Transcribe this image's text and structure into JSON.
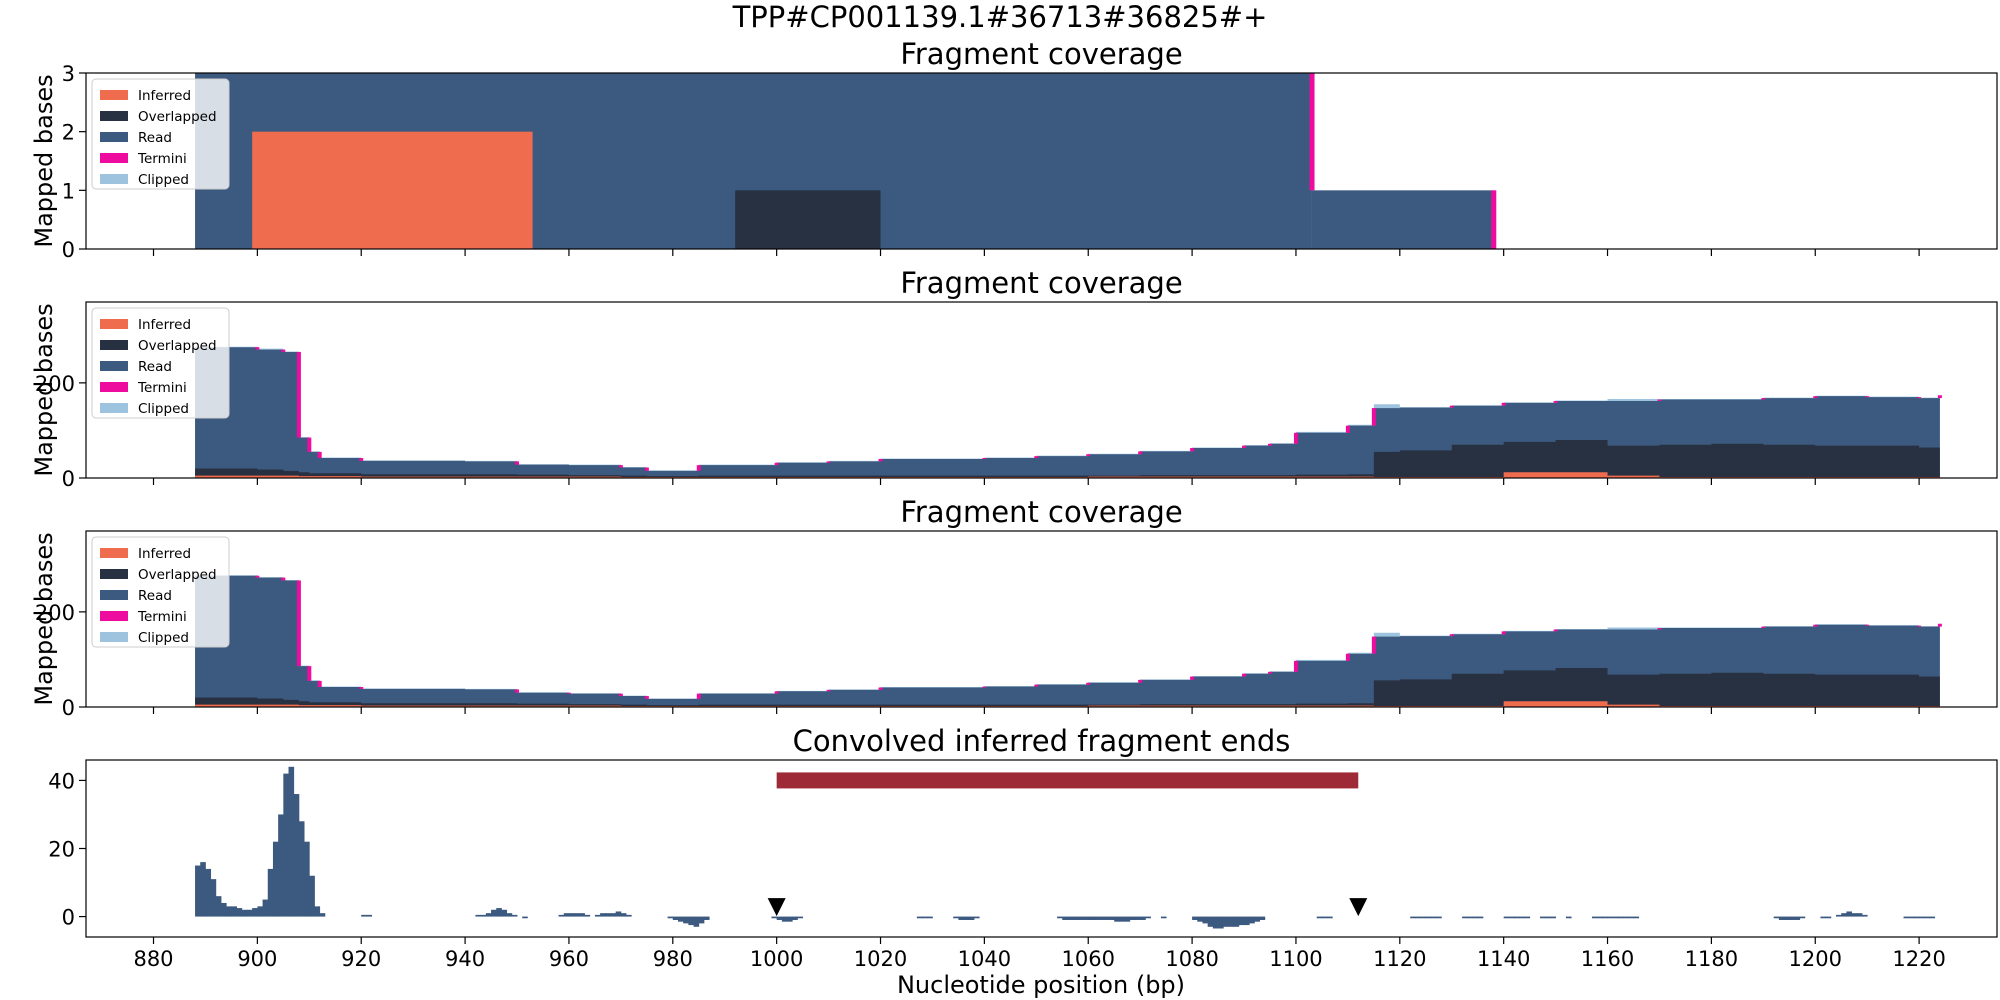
{
  "figure": {
    "suptitle": "TPP#CP001139.1#36713#36825#+"
  },
  "colors": {
    "Inferred": "#ef6c4f",
    "Overlapped": "#283142",
    "Read": "#3c5a80",
    "Termini": "#ee0c9e",
    "Clipped": "#9dc3de",
    "ends_bar": "#3c5a80",
    "region_bar": "#9e2a38",
    "marker": "#000000"
  },
  "x_axis": {
    "label": "Nucleotide position (bp)",
    "range": [
      867,
      1235
    ],
    "ticks": [
      880,
      900,
      920,
      940,
      960,
      980,
      1000,
      1020,
      1040,
      1060,
      1080,
      1100,
      1120,
      1140,
      1160,
      1180,
      1200,
      1220
    ]
  },
  "chart_data": [
    {
      "type": "area",
      "title": "Fragment coverage",
      "ylabel": "Mapped bases",
      "ylim": [
        0,
        3
      ],
      "yticks": [
        0,
        1,
        2,
        3
      ],
      "legend": [
        "Inferred",
        "Overlapped",
        "Read",
        "Termini",
        "Clipped"
      ],
      "legend_position": "top-left",
      "step_layers": [
        {
          "name": "Read",
          "segments": [
            [
              888,
              1103,
              3
            ],
            [
              1103,
              1138,
              1
            ]
          ]
        },
        {
          "name": "Inferred",
          "segments": [
            [
              899,
              953,
              2
            ]
          ]
        },
        {
          "name": "Overlapped",
          "segments": [
            [
              992,
              1020,
              1
            ]
          ]
        }
      ],
      "termini": [
        [
          1103,
          1,
          3
        ],
        [
          1138,
          0,
          1
        ]
      ]
    },
    {
      "type": "area",
      "title": "Fragment coverage",
      "ylabel": "Mapped bases",
      "ylim": [
        0,
        370
      ],
      "yticks": [
        0,
        200
      ],
      "legend": [
        "Inferred",
        "Overlapped",
        "Read",
        "Termini",
        "Clipped"
      ],
      "legend_position": "top-left",
      "x": [
        888,
        900,
        905,
        908,
        910,
        912,
        920,
        940,
        950,
        960,
        970,
        975,
        980,
        985,
        1000,
        1010,
        1020,
        1040,
        1050,
        1060,
        1070,
        1080,
        1090,
        1095,
        1100,
        1110,
        1115,
        1120,
        1130,
        1140,
        1150,
        1160,
        1170,
        1180,
        1190,
        1200,
        1210,
        1220,
        1224
      ],
      "series": [
        {
          "name": "Read",
          "values": [
            275,
            270,
            265,
            85,
            55,
            42,
            36,
            35,
            28,
            27,
            22,
            15,
            15,
            27,
            32,
            35,
            40,
            42,
            46,
            50,
            56,
            63,
            68,
            72,
            95,
            110,
            147,
            148,
            152,
            158,
            162,
            162,
            165,
            165,
            168,
            172,
            170,
            168,
            174
          ]
        },
        {
          "name": "Overlapped",
          "values": [
            20,
            18,
            15,
            12,
            10,
            10,
            8,
            8,
            7,
            6,
            5,
            4,
            4,
            5,
            5,
            5,
            5,
            5,
            5,
            5,
            6,
            6,
            6,
            6,
            7,
            8,
            55,
            58,
            70,
            76,
            80,
            68,
            70,
            72,
            70,
            68,
            68,
            64,
            55
          ]
        },
        {
          "name": "Inferred",
          "values": [
            5,
            5,
            5,
            4,
            4,
            4,
            3,
            3,
            3,
            3,
            2,
            2,
            2,
            2,
            2,
            2,
            2,
            2,
            2,
            3,
            3,
            3,
            3,
            3,
            3,
            3,
            2,
            2,
            2,
            12,
            12,
            5,
            2,
            2,
            2,
            2,
            2,
            2,
            2
          ]
        },
        {
          "name": "Clipped",
          "values": [
            276,
            272,
            266,
            86,
            56,
            43,
            37,
            36,
            29,
            28,
            23,
            16,
            16,
            28,
            33,
            36,
            41,
            43,
            47,
            51,
            57,
            64,
            69,
            73,
            97,
            112,
            155,
            149,
            153,
            159,
            163,
            166,
            166,
            166,
            169,
            173,
            171,
            169,
            175
          ]
        }
      ]
    },
    {
      "type": "area",
      "title": "Fragment coverage",
      "ylabel": "Mapped bases",
      "ylim": [
        0,
        370
      ],
      "yticks": [
        0,
        200
      ],
      "legend": [
        "Inferred",
        "Overlapped",
        "Read",
        "Termini",
        "Clipped"
      ],
      "legend_position": "top-left",
      "x": [
        888,
        900,
        905,
        908,
        910,
        912,
        920,
        940,
        950,
        960,
        970,
        975,
        980,
        985,
        1000,
        1010,
        1020,
        1040,
        1050,
        1060,
        1070,
        1080,
        1090,
        1095,
        1100,
        1110,
        1115,
        1120,
        1130,
        1140,
        1150,
        1160,
        1170,
        1180,
        1190,
        1200,
        1210,
        1220,
        1224
      ],
      "series": [
        {
          "name": "Read",
          "values": [
            276,
            272,
            266,
            86,
            55,
            42,
            38,
            37,
            30,
            28,
            23,
            17,
            17,
            28,
            33,
            36,
            41,
            43,
            47,
            51,
            57,
            64,
            70,
            74,
            97,
            112,
            148,
            149,
            153,
            159,
            163,
            163,
            166,
            166,
            169,
            173,
            171,
            169,
            175
          ]
        },
        {
          "name": "Overlapped",
          "values": [
            20,
            18,
            15,
            12,
            10,
            10,
            8,
            8,
            7,
            6,
            5,
            4,
            4,
            5,
            5,
            5,
            5,
            5,
            5,
            5,
            6,
            6,
            6,
            6,
            7,
            8,
            56,
            58,
            70,
            77,
            82,
            68,
            70,
            72,
            70,
            68,
            68,
            64,
            56
          ]
        },
        {
          "name": "Inferred",
          "values": [
            5,
            5,
            5,
            4,
            4,
            4,
            3,
            3,
            3,
            3,
            2,
            2,
            2,
            2,
            2,
            2,
            2,
            2,
            2,
            3,
            3,
            3,
            3,
            3,
            3,
            3,
            2,
            2,
            2,
            12,
            12,
            5,
            2,
            2,
            2,
            2,
            2,
            2,
            2
          ]
        },
        {
          "name": "Clipped",
          "values": [
            277,
            273,
            267,
            87,
            56,
            43,
            39,
            38,
            31,
            29,
            24,
            18,
            18,
            29,
            34,
            37,
            42,
            44,
            48,
            52,
            58,
            65,
            71,
            75,
            99,
            114,
            156,
            150,
            154,
            160,
            164,
            167,
            167,
            167,
            170,
            174,
            172,
            170,
            176
          ]
        }
      ]
    },
    {
      "type": "bar",
      "title": "Convolved inferred fragment ends",
      "ylim": [
        -6,
        46
      ],
      "yticks": [
        0,
        20,
        40
      ],
      "ends": {
        "start": 888,
        "values": [
          15,
          16,
          14,
          11,
          6,
          4,
          3,
          3,
          2.5,
          2,
          2,
          2.5,
          3,
          5,
          14,
          22,
          30,
          42,
          44,
          36,
          28,
          22,
          12,
          3,
          1,
          0,
          0,
          0,
          0,
          0,
          0,
          0,
          0.5,
          0.5,
          0,
          0,
          0,
          0,
          0,
          0,
          0,
          0,
          0,
          0,
          0,
          0,
          0,
          0,
          0,
          0,
          0,
          0,
          0,
          0,
          0.5,
          0.5,
          1,
          2,
          2.5,
          2,
          1,
          0.5,
          0,
          -0.5,
          0,
          0,
          0,
          0,
          0,
          0,
          0.5,
          1,
          1,
          1,
          1,
          0.5,
          0,
          0.5,
          1,
          1,
          1,
          1.5,
          1,
          0.5,
          0,
          0,
          0,
          0,
          0,
          0,
          0,
          -0.5,
          -1,
          -1.5,
          -2,
          -2.5,
          -3,
          -2,
          -1,
          0,
          0,
          0,
          0,
          0,
          0,
          0,
          0,
          0,
          0,
          0,
          0,
          -0.5,
          -1,
          -1.5,
          -1.5,
          -1,
          -0.5,
          0,
          0,
          0,
          0,
          0,
          0,
          0,
          0,
          0,
          0,
          0,
          0,
          0,
          0,
          0,
          0,
          0,
          0,
          0,
          0,
          0,
          0,
          -0.5,
          -0.5,
          -0.5,
          0,
          0,
          0,
          0,
          -0.5,
          -1,
          -1,
          -1,
          -0.5,
          0,
          0,
          0,
          0,
          0,
          0,
          0,
          0,
          0,
          0,
          0,
          0,
          0,
          0,
          0,
          -0.5,
          -1,
          -1,
          -1,
          -1,
          -1,
          -1,
          -1,
          -1,
          -1,
          -1,
          -1.5,
          -1.5,
          -1.5,
          -1,
          -1,
          -1,
          -0.5,
          0,
          0,
          -0.5,
          0,
          0,
          0,
          0,
          0,
          -1,
          -1.5,
          -2,
          -3,
          -3.5,
          -3.5,
          -3,
          -3,
          -3,
          -2.5,
          -2.5,
          -2,
          -1.5,
          -1,
          0,
          0,
          0,
          0,
          0,
          0,
          0,
          0,
          0,
          0,
          -0.5,
          -0.5,
          -0.5,
          0,
          0,
          0,
          0,
          0,
          0,
          0,
          0,
          0,
          0,
          0,
          0,
          0,
          0,
          0,
          -0.5,
          -0.5,
          -0.5,
          -0.5,
          -0.5,
          -0.5,
          0,
          0,
          0,
          0,
          -0.5,
          -0.5,
          -0.5,
          -0.5,
          0,
          0,
          0,
          0,
          -0.5,
          -0.5,
          -0.5,
          -0.5,
          -0.5,
          0,
          0,
          -0.5,
          -0.5,
          -0.5,
          0,
          0,
          -0.5,
          0,
          0,
          0,
          0,
          -0.5,
          -0.5,
          -0.5,
          -0.5,
          -0.5,
          -0.5,
          -0.5,
          -0.5,
          -0.5,
          0,
          0,
          0,
          0,
          0,
          0,
          0,
          0,
          0,
          0,
          0,
          0,
          0,
          0,
          0,
          0,
          0,
          0,
          0,
          0,
          0,
          0,
          0,
          0,
          0,
          0,
          -0.5,
          -1,
          -1,
          -1,
          -1,
          -0.5,
          0,
          0,
          0,
          -0.5,
          -0.5,
          0,
          0.5,
          1,
          1.5,
          1,
          1,
          0.5,
          0,
          0,
          0,
          0,
          0,
          0,
          0,
          -0.5,
          -0.5,
          -0.5,
          -0.5,
          -0.5,
          -0.5
        ]
      },
      "region": [
        1000,
        1112,
        40
      ],
      "markers": [
        1000,
        1112
      ]
    }
  ]
}
